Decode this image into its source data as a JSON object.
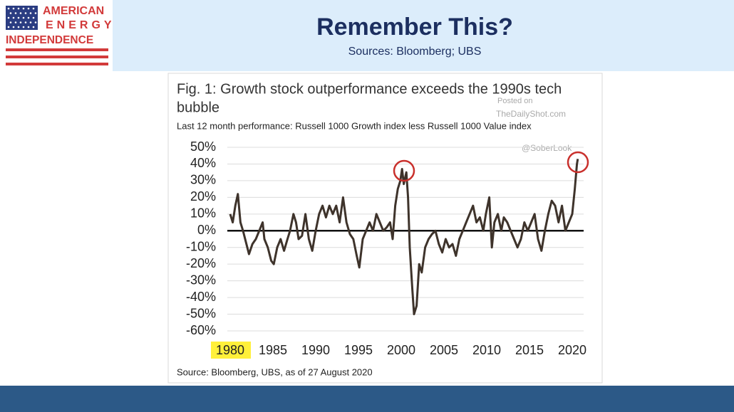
{
  "logo": {
    "lines": [
      "AMERICAN",
      "ENERGY",
      "INDEPENDENCE"
    ]
  },
  "header": {
    "title": "Remember This?",
    "subtitle": "Sources: Bloomberg; UBS"
  },
  "chart_data": {
    "type": "line",
    "title_lines": [
      "Fig. 1: Growth stock outperformance exceeds the 1990s tech",
      "bubble"
    ],
    "subtitle": "Last 12 month performance: Russell 1000 Growth index less Russell 1000 Value index",
    "source": "Source: Bloomberg, UBS, as of 27 August 2020",
    "watermarks": [
      "Posted on",
      "TheDailyShot.com",
      "@SoberLook"
    ],
    "xlim": [
      1979,
      2021.5
    ],
    "xticks": [
      1980,
      1985,
      1990,
      1995,
      2000,
      2005,
      2010,
      2015,
      2020
    ],
    "ylim": [
      -60,
      50
    ],
    "yticks": [
      {
        "value": 50,
        "label": "50%"
      },
      {
        "value": 40,
        "label": "40%"
      },
      {
        "value": 30,
        "label": "30%"
      },
      {
        "value": 20,
        "label": "20%"
      },
      {
        "value": 10,
        "label": "10%"
      },
      {
        "value": 0,
        "label": "0%"
      },
      {
        "value": -10,
        "label": "-10%"
      },
      {
        "value": -20,
        "label": "-20%"
      },
      {
        "value": -30,
        "label": "-30%"
      },
      {
        "value": -40,
        "label": "-40%"
      },
      {
        "value": -50,
        "label": "-50%"
      },
      {
        "value": -60,
        "label": "-60%"
      }
    ],
    "grid": true,
    "color": "#3e332b",
    "x": [
      1980.0,
      1980.3,
      1980.6,
      1980.9,
      1981.2,
      1981.5,
      1981.9,
      1982.2,
      1982.6,
      1983.0,
      1983.4,
      1983.8,
      1984.0,
      1984.4,
      1984.8,
      1985.1,
      1985.5,
      1985.9,
      1986.3,
      1986.7,
      1987.0,
      1987.4,
      1987.7,
      1988.0,
      1988.4,
      1988.8,
      1989.2,
      1989.6,
      1990.0,
      1990.4,
      1990.8,
      1991.2,
      1991.6,
      1992.0,
      1992.4,
      1992.8,
      1993.2,
      1993.6,
      1994.0,
      1994.4,
      1994.8,
      1995.1,
      1995.5,
      1995.9,
      1996.3,
      1996.7,
      1997.1,
      1997.5,
      1997.9,
      1998.3,
      1998.7,
      1999.0,
      1999.3,
      1999.6,
      1999.9,
      2000.1,
      2000.3,
      2000.6,
      2000.8,
      2001.0,
      2001.3,
      2001.5,
      2001.8,
      2002.1,
      2002.4,
      2002.8,
      2003.2,
      2003.6,
      2004.0,
      2004.4,
      2004.8,
      2005.2,
      2005.6,
      2006.0,
      2006.4,
      2006.8,
      2007.2,
      2007.6,
      2008.0,
      2008.4,
      2008.8,
      2009.2,
      2009.6,
      2009.9,
      2010.3,
      2010.6,
      2010.9,
      2011.3,
      2011.7,
      2012.0,
      2012.4,
      2012.8,
      2013.2,
      2013.6,
      2014.0,
      2014.4,
      2014.8,
      2015.2,
      2015.6,
      2016.0,
      2016.4,
      2016.8,
      2017.2,
      2017.6,
      2018.0,
      2018.4,
      2018.8,
      2019.2,
      2019.6,
      2020.0,
      2020.3,
      2020.55,
      2020.65
    ],
    "values": [
      10,
      5,
      15,
      22,
      5,
      0,
      -8,
      -14,
      -8,
      -5,
      0,
      5,
      -5,
      -10,
      -18,
      -20,
      -10,
      -5,
      -12,
      -5,
      0,
      10,
      5,
      -5,
      -3,
      10,
      -5,
      -12,
      0,
      10,
      15,
      8,
      15,
      10,
      15,
      5,
      20,
      5,
      -2,
      -5,
      -15,
      -22,
      -5,
      0,
      5,
      0,
      10,
      5,
      0,
      2,
      5,
      -5,
      15,
      25,
      30,
      37,
      28,
      35,
      20,
      -10,
      -35,
      -50,
      -45,
      -20,
      -25,
      -10,
      -5,
      -2,
      0,
      -8,
      -13,
      -5,
      -10,
      -8,
      -15,
      -5,
      0,
      5,
      10,
      15,
      5,
      8,
      0,
      10,
      20,
      -10,
      5,
      10,
      0,
      8,
      5,
      0,
      -5,
      -10,
      -5,
      5,
      0,
      5,
      10,
      -5,
      -12,
      0,
      10,
      18,
      15,
      5,
      15,
      0,
      5,
      10,
      25,
      40,
      43
    ]
  }
}
